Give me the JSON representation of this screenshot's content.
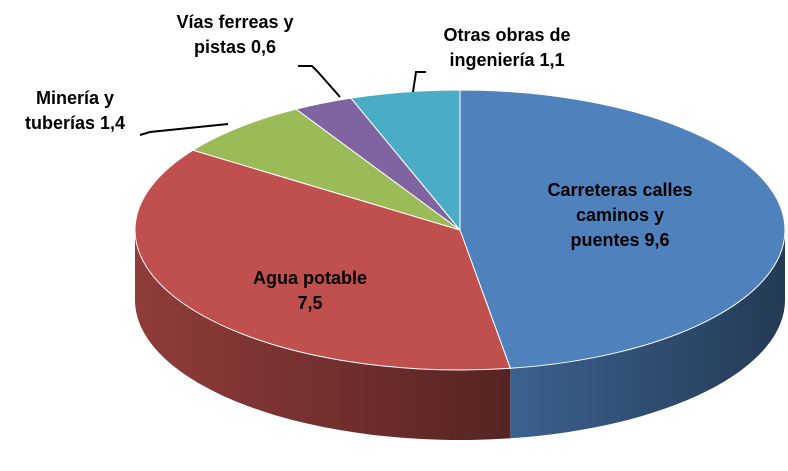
{
  "chart_data": {
    "type": "pie3d",
    "categories": [
      "Carreteras calles caminos y puentes",
      "Agua potable",
      "Minería y tuberías",
      "Vías ferreas y pistas",
      "Otras obras de ingeniería"
    ],
    "values": [
      9.6,
      7.5,
      1.4,
      0.6,
      1.1
    ],
    "value_labels": [
      "9,6",
      "7,5",
      "1,4",
      "0,6",
      "1,1"
    ],
    "colors": [
      "#4f81bd",
      "#c0504d",
      "#9bbb59",
      "#8064a2",
      "#4bacc6"
    ]
  }
}
